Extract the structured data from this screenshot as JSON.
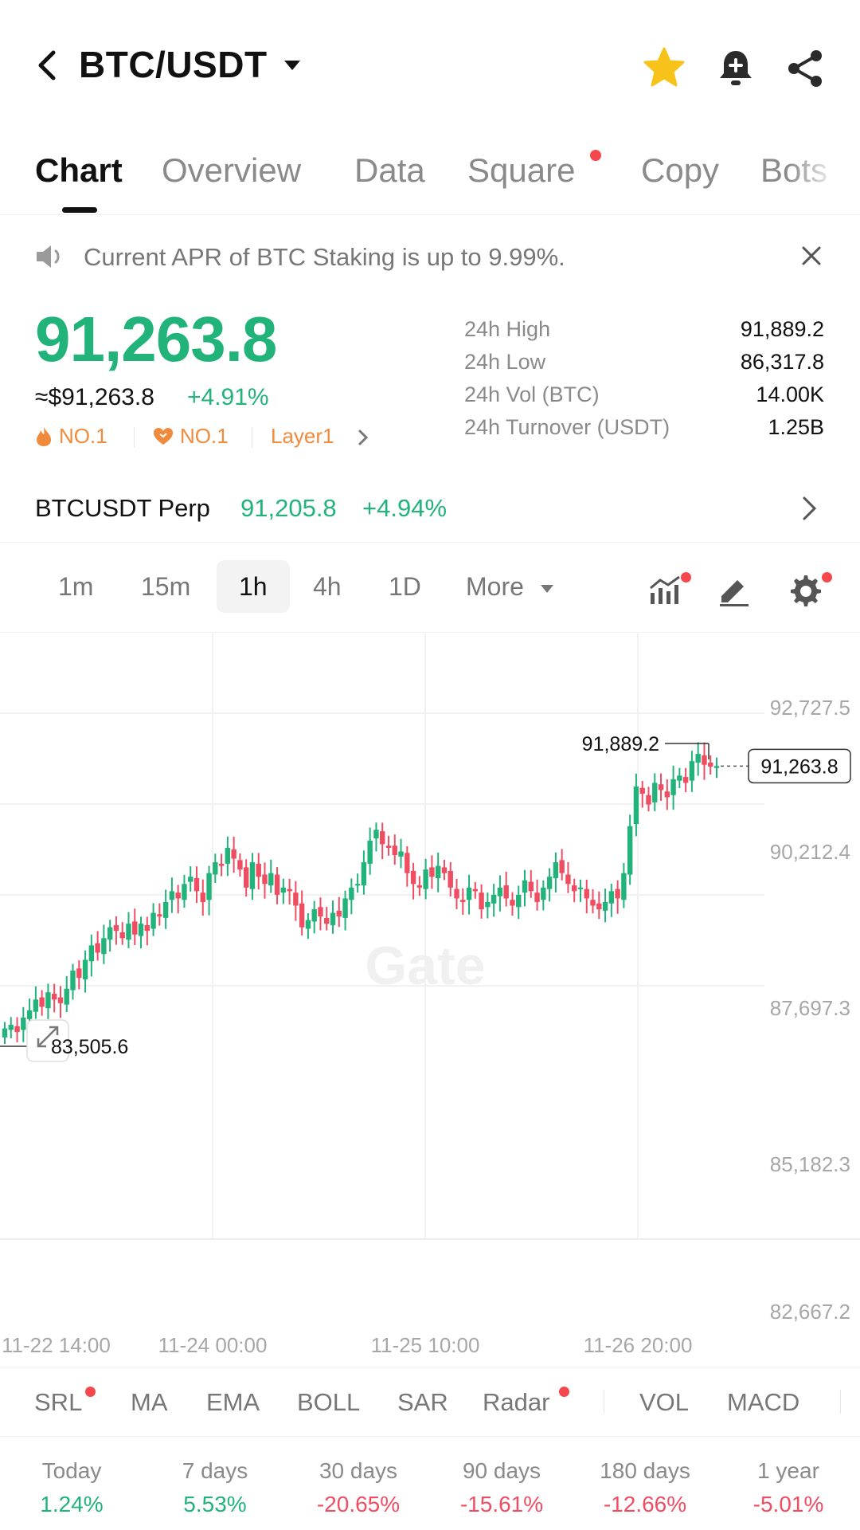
{
  "header": {
    "title": "BTC/USDT"
  },
  "tabs": [
    {
      "label": "Chart",
      "active": true
    },
    {
      "label": "Overview"
    },
    {
      "label": "Data"
    },
    {
      "label": "Square",
      "dot": true
    },
    {
      "label": "Copy"
    },
    {
      "label": "Bots"
    }
  ],
  "announcement": {
    "text": "Current APR of BTC Staking is up to 9.99%."
  },
  "price": {
    "last": "91,263.8",
    "usd": "≈$91,263.8",
    "change": "+4.91%",
    "tags": [
      "NO.1",
      "NO.1",
      "Layer1"
    ]
  },
  "stats": [
    {
      "label": "24h High",
      "value": "91,889.2"
    },
    {
      "label": "24h Low",
      "value": "86,317.8"
    },
    {
      "label": "24h Vol (BTC)",
      "value": "14.00K"
    },
    {
      "label": "24h Turnover (USDT)",
      "value": "1.25B"
    }
  ],
  "perp": {
    "name": "BTCUSDT Perp",
    "price": "91,205.8",
    "change": "+4.94%"
  },
  "intervals": [
    {
      "label": "1m"
    },
    {
      "label": "15m"
    },
    {
      "label": "1h",
      "active": true
    },
    {
      "label": "4h"
    },
    {
      "label": "1D"
    },
    {
      "label": "More"
    }
  ],
  "chart_data": {
    "type": "candlestick",
    "y_ticks": [
      "92,727.5",
      "90,212.4",
      "87,697.3",
      "85,182.3",
      "82,667.2"
    ],
    "ylim": [
      82667.2,
      92727.5
    ],
    "x_ticks": [
      "11-22 14:00",
      "11-24 00:00",
      "11-25 10:00",
      "11-26 20:00"
    ],
    "high_label": "91,889.2",
    "low_label": "83,505.6",
    "last_label": "91,263.8",
    "watermark": "Gate",
    "colors": {
      "up": "#22b37b",
      "down": "#ef4d62"
    },
    "closes": [
      84000,
      84100,
      83900,
      84300,
      84500,
      84800,
      84600,
      85000,
      84800,
      84700,
      85100,
      85600,
      85400,
      85900,
      86300,
      86100,
      86500,
      86800,
      86700,
      86500,
      86900,
      86600,
      86900,
      86700,
      87200,
      87100,
      87500,
      87800,
      87600,
      88000,
      88200,
      87800,
      87500,
      88300,
      88600,
      88500,
      89000,
      88700,
      88400,
      87900,
      88600,
      88200,
      88000,
      88300,
      87700,
      87900,
      87800,
      87400,
      86800,
      87000,
      87300,
      87100,
      86900,
      87200,
      87100,
      87600,
      87900,
      88000,
      88600,
      89200,
      89500,
      89100,
      89000,
      88800,
      88900,
      88300,
      88000,
      87900,
      88400,
      88200,
      88500,
      88300,
      87900,
      87600,
      87500,
      87900,
      87800,
      87300,
      87500,
      87700,
      87900,
      87600,
      87400,
      87700,
      88100,
      87800,
      87500,
      87900,
      88200,
      88600,
      88300,
      88000,
      87800,
      87900,
      87600,
      87400,
      87300,
      87500,
      87800,
      87600,
      88300,
      89600,
      90700,
      90500,
      90200,
      90800,
      90600,
      90400,
      90900,
      91000,
      90800,
      91400,
      91600,
      91300,
      91250,
      91263.8
    ]
  },
  "indicators": [
    {
      "label": "SRL",
      "dot": true
    },
    {
      "label": "MA"
    },
    {
      "label": "EMA"
    },
    {
      "label": "BOLL"
    },
    {
      "label": "SAR"
    },
    {
      "label": "Radar",
      "dot": true
    },
    {
      "label": "VOL"
    },
    {
      "label": "MACD"
    }
  ],
  "performance": [
    {
      "label": "Today",
      "value": "1.24%",
      "dir": "pos"
    },
    {
      "label": "7 days",
      "value": "5.53%",
      "dir": "pos"
    },
    {
      "label": "30 days",
      "value": "-20.65%",
      "dir": "neg"
    },
    {
      "label": "90 days",
      "value": "-15.61%",
      "dir": "neg"
    },
    {
      "label": "180 days",
      "value": "-12.66%",
      "dir": "neg"
    },
    {
      "label": "1 year",
      "value": "-5.01%",
      "dir": "neg"
    }
  ]
}
